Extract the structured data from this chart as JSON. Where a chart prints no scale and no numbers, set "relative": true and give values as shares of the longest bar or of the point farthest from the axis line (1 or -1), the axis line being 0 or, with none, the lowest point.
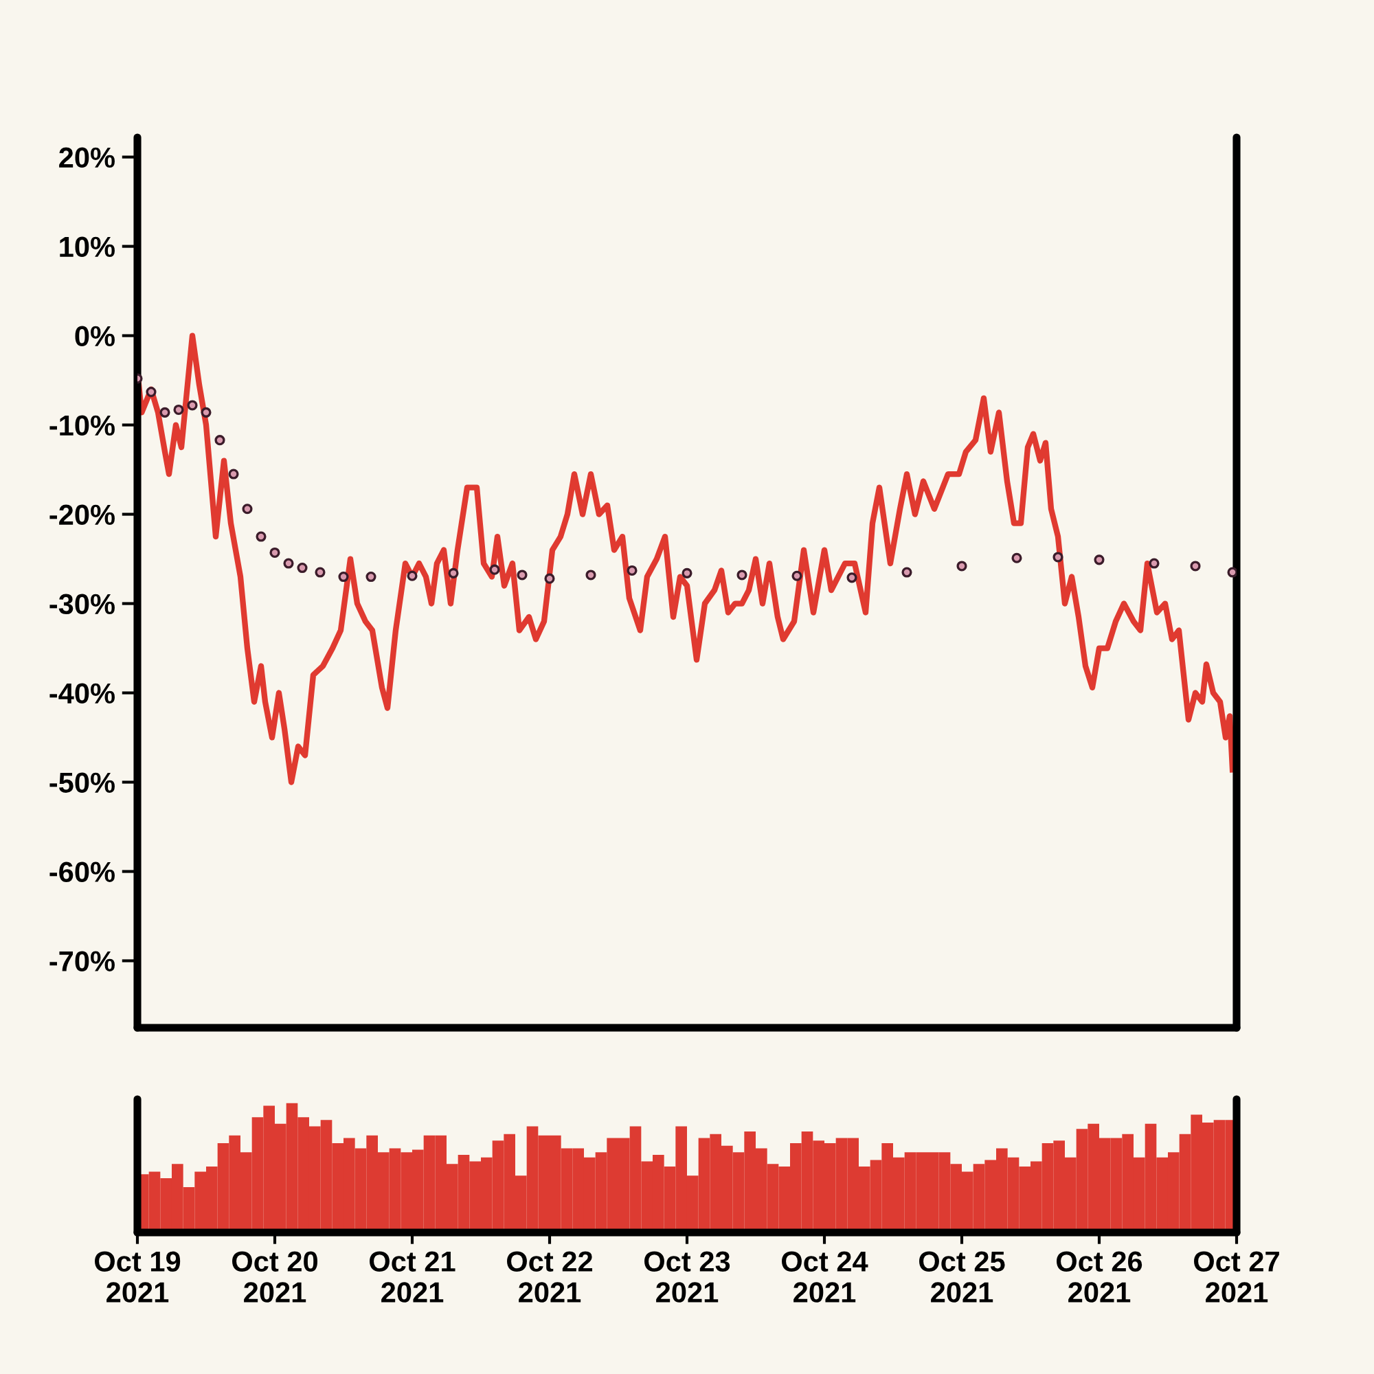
{
  "chart_data": [
    {
      "type": "line",
      "xlim": [
        "2021-10-19",
        "2021-10-27"
      ],
      "ylim": [
        -77.5,
        22.2
      ],
      "yticks": [
        {
          "value": 20,
          "label": "20%"
        },
        {
          "value": 10,
          "label": "10%"
        },
        {
          "value": 0,
          "label": "0%"
        },
        {
          "value": -10,
          "label": "-10%"
        },
        {
          "value": -20,
          "label": "-20%"
        },
        {
          "value": -30,
          "label": "-30%"
        },
        {
          "value": -40,
          "label": "-40%"
        },
        {
          "value": -50,
          "label": "-50%"
        },
        {
          "value": -60,
          "label": "-60%"
        },
        {
          "value": -70,
          "label": "-70%"
        }
      ],
      "tick_labels": "y",
      "series": [
        {
          "type": "line",
          "color": "#e03a30",
          "marker": "none",
          "line_style": "solid",
          "x": [
            "2021-10-19T00:00",
            "2021-10-19T00:45",
            "2021-10-19T02:24",
            "2021-10-19T03:36",
            "2021-10-19T04:48",
            "2021-10-19T05:31",
            "2021-10-19T06:43",
            "2021-10-19T07:41",
            "2021-10-19T09:36",
            "2021-10-19T10:48",
            "2021-10-19T12:00",
            "2021-10-19T13:41",
            "2021-10-19T15:07",
            "2021-10-19T16:19",
            "2021-10-19T18:00",
            "2021-10-19T19:12",
            "2021-10-19T20:24",
            "2021-10-19T21:36",
            "2021-10-19T22:19",
            "2021-10-19T23:31",
            "2021-10-20T00:43",
            "2021-10-20T01:41",
            "2021-10-20T02:53",
            "2021-10-20T04:05",
            "2021-10-20T05:17",
            "2021-10-20T06:43",
            "2021-10-20T08:24",
            "2021-10-20T10:05",
            "2021-10-20T11:31",
            "2021-10-20T13:12",
            "2021-10-20T14:24",
            "2021-10-20T15:50",
            "2021-10-20T17:02",
            "2021-10-20T18:43",
            "2021-10-20T19:41",
            "2021-10-20T21:07",
            "2021-10-20T22:48",
            "2021-10-21T00:00",
            "2021-10-21T01:12",
            "2021-10-21T02:24",
            "2021-10-21T03:22",
            "2021-10-21T04:19",
            "2021-10-21T05:31",
            "2021-10-21T06:43",
            "2021-10-21T07:55",
            "2021-10-21T09:36",
            "2021-10-21T11:17",
            "2021-10-21T12:29",
            "2021-10-21T13:55",
            "2021-10-21T14:53",
            "2021-10-21T16:05",
            "2021-10-21T17:31",
            "2021-10-21T18:43",
            "2021-10-21T20:24",
            "2021-10-21T21:36",
            "2021-10-21T23:02",
            "2021-10-22T00:29",
            "2021-10-22T01:55",
            "2021-10-22T03:07",
            "2021-10-22T04:19",
            "2021-10-22T05:46",
            "2021-10-22T07:12",
            "2021-10-22T08:38",
            "2021-10-22T10:05",
            "2021-10-22T11:17",
            "2021-10-22T12:43",
            "2021-10-22T13:55",
            "2021-10-22T15:50",
            "2021-10-22T17:02",
            "2021-10-22T18:43",
            "2021-10-22T20:10",
            "2021-10-22T21:36",
            "2021-10-22T22:48",
            "2021-10-23T00:00",
            "2021-10-23T01:41",
            "2021-10-23T03:07",
            "2021-10-23T04:48",
            "2021-10-23T06:00",
            "2021-10-23T07:12",
            "2021-10-23T08:24",
            "2021-10-23T09:36",
            "2021-10-23T10:48",
            "2021-10-23T12:00",
            "2021-10-23T13:12",
            "2021-10-23T14:24",
            "2021-10-23T15:50",
            "2021-10-23T16:48",
            "2021-10-23T18:43",
            "2021-10-23T20:24",
            "2021-10-23T22:05",
            "2021-10-24T00:00",
            "2021-10-24T01:12",
            "2021-10-24T03:36",
            "2021-10-24T05:17",
            "2021-10-24T07:12",
            "2021-10-24T08:24",
            "2021-10-24T09:36",
            "2021-10-24T11:31",
            "2021-10-24T13:12",
            "2021-10-24T14:24",
            "2021-10-24T15:50",
            "2021-10-24T17:17",
            "2021-10-24T19:12",
            "2021-10-24T21:36",
            "2021-10-24T23:31",
            "2021-10-25T00:43",
            "2021-10-25T02:24",
            "2021-10-25T03:50",
            "2021-10-25T05:02",
            "2021-10-25T06:29",
            "2021-10-25T07:55",
            "2021-10-25T09:07",
            "2021-10-25T10:19",
            "2021-10-25T11:31",
            "2021-10-25T12:29",
            "2021-10-25T13:41",
            "2021-10-25T14:38",
            "2021-10-25T15:36",
            "2021-10-25T16:48",
            "2021-10-25T18:00",
            "2021-10-25T19:12",
            "2021-10-25T20:24",
            "2021-10-25T21:36",
            "2021-10-25T22:48",
            "2021-10-26T00:00",
            "2021-10-26T01:26",
            "2021-10-26T02:53",
            "2021-10-26T04:19",
            "2021-10-26T06:00",
            "2021-10-26T07:12",
            "2021-10-26T08:24",
            "2021-10-26T10:05",
            "2021-10-26T11:31",
            "2021-10-26T12:43",
            "2021-10-26T13:55",
            "2021-10-26T15:36",
            "2021-10-26T16:48",
            "2021-10-26T18:00",
            "2021-10-26T18:43",
            "2021-10-26T19:55",
            "2021-10-26T21:07",
            "2021-10-26T22:05",
            "2021-10-26T22:48",
            "2021-10-26T23:17"
          ],
          "values": [
            -4,
            -8.6,
            -6,
            -8.6,
            -13,
            -15.5,
            -10,
            -12.5,
            0,
            -5.5,
            -10,
            -22.5,
            -14,
            -21,
            -27,
            -35,
            -41,
            -37,
            -41,
            -45,
            -40,
            -44,
            -50,
            -46,
            -47,
            -38,
            -37,
            -35,
            -33,
            -25,
            -30,
            -32,
            -33,
            -39.4,
            -41.7,
            -33,
            -25.5,
            -27,
            -25.5,
            -27,
            -30,
            -25.5,
            -24,
            -30,
            -24,
            -17,
            -17,
            -25.5,
            -27,
            -22.5,
            -28,
            -25.5,
            -33,
            -31.5,
            -34,
            -32,
            -24,
            -22.5,
            -20,
            -15.5,
            -20,
            -15.5,
            -20,
            -19,
            -24,
            -22.5,
            -29.4,
            -33,
            -27,
            -25,
            -22.5,
            -31.5,
            -27,
            -28,
            -36.3,
            -30,
            -28.5,
            -26.3,
            -31,
            -30,
            -30,
            -28.5,
            -25,
            -30,
            -25.5,
            -31.5,
            -34,
            -32,
            -24,
            -31,
            -24,
            -28.5,
            -25.5,
            -25.5,
            -31,
            -21,
            -17,
            -25.5,
            -19.4,
            -15.5,
            -20,
            -16.3,
            -19.4,
            -15.5,
            -15.5,
            -13,
            -11.7,
            -7,
            -13,
            -8.6,
            -16.3,
            -21,
            -21,
            -12.5,
            -11,
            -14,
            -12,
            -19.4,
            -22.5,
            -30,
            -27,
            -31.5,
            -37,
            -39.4,
            -35,
            -35,
            -32,
            -30,
            -32,
            -33,
            -25.5,
            -31,
            -30,
            -34,
            -33,
            -43,
            -40,
            -41,
            -36.8,
            -40,
            -41,
            -45,
            -42.6,
            -48.6
          ]
        },
        {
          "type": "scatter",
          "color": "#3b1c2a",
          "marker": "circle",
          "x": [
            "2021-10-19T00:00",
            "2021-10-19T02:24",
            "2021-10-19T04:48",
            "2021-10-19T07:12",
            "2021-10-19T09:36",
            "2021-10-19T12:00",
            "2021-10-19T14:24",
            "2021-10-19T16:48",
            "2021-10-19T19:12",
            "2021-10-19T21:36",
            "2021-10-20T00:00",
            "2021-10-20T02:24",
            "2021-10-20T04:48",
            "2021-10-20T07:55",
            "2021-10-20T12:00",
            "2021-10-20T16:48",
            "2021-10-21T00:00",
            "2021-10-21T07:12",
            "2021-10-21T14:24",
            "2021-10-21T19:12",
            "2021-10-22T00:00",
            "2021-10-22T07:12",
            "2021-10-22T14:24",
            "2021-10-23T00:00",
            "2021-10-23T09:36",
            "2021-10-23T19:12",
            "2021-10-24T04:48",
            "2021-10-24T14:24",
            "2021-10-25T00:00",
            "2021-10-25T09:36",
            "2021-10-25T16:48",
            "2021-10-26T00:00",
            "2021-10-26T09:36",
            "2021-10-26T16:48",
            "2021-10-26T23:17"
          ],
          "values": [
            -4.8,
            -6.3,
            -8.6,
            -8.3,
            -7.8,
            -8.6,
            -11.7,
            -15.5,
            -19.4,
            -22.5,
            -24.3,
            -25.5,
            -26,
            -26.5,
            -27,
            -27,
            -26.9,
            -26.6,
            -26.2,
            -26.8,
            -27.2,
            -26.8,
            -26.3,
            -26.6,
            -26.8,
            -26.9,
            -27.1,
            -26.5,
            -25.8,
            -24.9,
            -24.8,
            -25.1,
            -25.5,
            -25.8,
            -26.5
          ]
        }
      ]
    },
    {
      "type": "bar",
      "relative": true,
      "color": "#dd3b32",
      "tick_labels": "x",
      "xlim": [
        "2021-10-19",
        "2021-10-27"
      ],
      "xticks": [
        {
          "value": "2021-10-19",
          "label": "Oct 19\n2021"
        },
        {
          "value": "2021-10-20",
          "label": "Oct 20\n2021"
        },
        {
          "value": "2021-10-21",
          "label": "Oct 21\n2021"
        },
        {
          "value": "2021-10-22",
          "label": "Oct 22\n2021"
        },
        {
          "value": "2021-10-23",
          "label": "Oct 23\n2021"
        },
        {
          "value": "2021-10-24",
          "label": "Oct 24\n2021"
        },
        {
          "value": "2021-10-25",
          "label": "Oct 25\n2021"
        },
        {
          "value": "2021-10-26",
          "label": "Oct 26\n2021"
        },
        {
          "value": "2021-10-27",
          "label": "Oct 27\n2021"
        }
      ],
      "x": [
        "2021-10-19T01:00",
        "2021-10-19T03:00",
        "2021-10-19T05:00",
        "2021-10-19T07:00",
        "2021-10-19T09:00",
        "2021-10-19T11:00",
        "2021-10-19T13:00",
        "2021-10-19T15:00",
        "2021-10-19T17:00",
        "2021-10-19T19:00",
        "2021-10-19T21:00",
        "2021-10-19T23:00",
        "2021-10-20T01:00",
        "2021-10-20T03:00",
        "2021-10-20T05:00",
        "2021-10-20T07:00",
        "2021-10-20T09:00",
        "2021-10-20T11:00",
        "2021-10-20T13:00",
        "2021-10-20T15:00",
        "2021-10-20T17:00",
        "2021-10-20T19:00",
        "2021-10-20T21:00",
        "2021-10-20T23:00",
        "2021-10-21T01:00",
        "2021-10-21T03:00",
        "2021-10-21T05:00",
        "2021-10-21T07:00",
        "2021-10-21T09:00",
        "2021-10-21T11:00",
        "2021-10-21T13:00",
        "2021-10-21T15:00",
        "2021-10-21T17:00",
        "2021-10-21T19:00",
        "2021-10-21T21:00",
        "2021-10-21T23:00",
        "2021-10-22T01:00",
        "2021-10-22T03:00",
        "2021-10-22T05:00",
        "2021-10-22T07:00",
        "2021-10-22T09:00",
        "2021-10-22T11:00",
        "2021-10-22T13:00",
        "2021-10-22T15:00",
        "2021-10-22T17:00",
        "2021-10-22T19:00",
        "2021-10-22T21:00",
        "2021-10-22T23:00",
        "2021-10-23T01:00",
        "2021-10-23T03:00",
        "2021-10-23T05:00",
        "2021-10-23T07:00",
        "2021-10-23T09:00",
        "2021-10-23T11:00",
        "2021-10-23T13:00",
        "2021-10-23T15:00",
        "2021-10-23T17:00",
        "2021-10-23T19:00",
        "2021-10-23T21:00",
        "2021-10-23T23:00",
        "2021-10-24T01:00",
        "2021-10-24T03:00",
        "2021-10-24T05:00",
        "2021-10-24T07:00",
        "2021-10-24T09:00",
        "2021-10-24T11:00",
        "2021-10-24T13:00",
        "2021-10-24T15:00",
        "2021-10-24T17:00",
        "2021-10-24T19:00",
        "2021-10-24T21:00",
        "2021-10-24T23:00",
        "2021-10-25T01:00",
        "2021-10-25T03:00",
        "2021-10-25T05:00",
        "2021-10-25T07:00",
        "2021-10-25T09:00",
        "2021-10-25T11:00",
        "2021-10-25T13:00",
        "2021-10-25T15:00",
        "2021-10-25T17:00",
        "2021-10-25T19:00",
        "2021-10-25T21:00",
        "2021-10-25T23:00",
        "2021-10-26T01:00",
        "2021-10-26T03:00",
        "2021-10-26T05:00",
        "2021-10-26T07:00",
        "2021-10-26T09:00",
        "2021-10-26T11:00",
        "2021-10-26T13:00",
        "2021-10-26T15:00",
        "2021-10-26T17:00",
        "2021-10-26T19:00",
        "2021-10-26T21:00",
        "2021-10-26T23:00"
      ],
      "values": [
        0.45,
        0.47,
        0.42,
        0.53,
        0.35,
        0.47,
        0.51,
        0.69,
        0.75,
        0.62,
        0.89,
        0.98,
        0.84,
        1,
        0.89,
        0.82,
        0.87,
        0.69,
        0.73,
        0.65,
        0.75,
        0.62,
        0.65,
        0.62,
        0.64,
        0.75,
        0.75,
        0.53,
        0.6,
        0.55,
        0.58,
        0.71,
        0.76,
        0.44,
        0.82,
        0.75,
        0.75,
        0.65,
        0.65,
        0.58,
        0.62,
        0.73,
        0.73,
        0.82,
        0.55,
        0.6,
        0.51,
        0.82,
        0.44,
        0.73,
        0.76,
        0.67,
        0.62,
        0.78,
        0.65,
        0.53,
        0.51,
        0.69,
        0.78,
        0.71,
        0.69,
        0.73,
        0.73,
        0.51,
        0.56,
        0.69,
        0.58,
        0.62,
        0.62,
        0.62,
        0.62,
        0.53,
        0.47,
        0.53,
        0.56,
        0.65,
        0.58,
        0.51,
        0.55,
        0.69,
        0.71,
        0.58,
        0.8,
        0.84,
        0.73,
        0.73,
        0.76,
        0.58,
        0.84,
        0.58,
        0.62,
        0.76,
        0.91,
        0.85,
        0.87,
        0.87
      ]
    }
  ]
}
